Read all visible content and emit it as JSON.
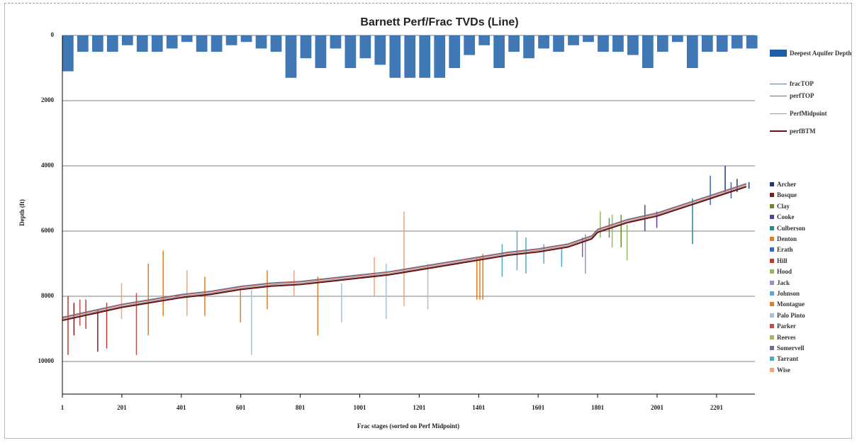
{
  "chart_data": {
    "type": "line",
    "title": "Barnett Perf/Frac TVDs (Line)",
    "xlabel": "Frac stages (sorted on Perf Midpoint)",
    "ylabel": "Depth (ft)",
    "xlim": [
      1,
      2330
    ],
    "ylim": [
      0,
      11000
    ],
    "y_reversed": true,
    "xticks": [
      1,
      201,
      401,
      601,
      801,
      1001,
      1201,
      1401,
      1601,
      1801,
      2001,
      2201
    ],
    "yticks": [
      0,
      2000,
      4000,
      6000,
      8000,
      10000
    ],
    "grid": true,
    "bars": {
      "name": "Deepest Aquifer Depth",
      "color": "#1f5fa8",
      "x": [
        1,
        51,
        101,
        151,
        201,
        251,
        301,
        351,
        401,
        451,
        501,
        551,
        601,
        651,
        701,
        751,
        801,
        851,
        901,
        951,
        1001,
        1051,
        1101,
        1151,
        1201,
        1251,
        1301,
        1351,
        1401,
        1451,
        1501,
        1551,
        1601,
        1651,
        1701,
        1751,
        1801,
        1851,
        1901,
        1951,
        2001,
        2051,
        2101,
        2151,
        2201,
        2251,
        2301
      ],
      "values": [
        1100,
        500,
        500,
        500,
        300,
        500,
        500,
        400,
        200,
        500,
        500,
        300,
        200,
        400,
        500,
        1300,
        700,
        1000,
        400,
        1000,
        700,
        900,
        1300,
        1300,
        1300,
        1300,
        1000,
        600,
        300,
        1000,
        500,
        700,
        400,
        500,
        300,
        200,
        500,
        500,
        600,
        1000,
        500,
        200,
        1000,
        500,
        500,
        400,
        400
      ]
    },
    "x": [
      1,
      101,
      201,
      301,
      401,
      501,
      601,
      701,
      801,
      901,
      1001,
      1101,
      1201,
      1301,
      1401,
      1501,
      1601,
      1701,
      1781,
      1801,
      1901,
      2001,
      2101,
      2201,
      2301
    ],
    "series": [
      {
        "name": "fracTOP",
        "color": "#5a7fa8",
        "values": [
          8640,
          8440,
          8240,
          8090,
          7940,
          7840,
          7690,
          7590,
          7540,
          7440,
          7340,
          7240,
          7090,
          6940,
          6790,
          6640,
          6540,
          6390,
          6140,
          5940,
          5640,
          5440,
          5140,
          4840,
          4540
        ]
      },
      {
        "name": "perfTOP",
        "color": "#c0504d",
        "values": [
          8660,
          8460,
          8260,
          8110,
          7960,
          7860,
          7710,
          7610,
          7560,
          7460,
          7360,
          7260,
          7110,
          6960,
          6810,
          6660,
          6560,
          6410,
          6160,
          5960,
          5660,
          5460,
          5160,
          4860,
          4560
        ]
      },
      {
        "name": "PerfMidpoint",
        "color": "#9a9a9a",
        "values": [
          8700,
          8500,
          8300,
          8150,
          8000,
          7900,
          7750,
          7650,
          7600,
          7500,
          7400,
          7300,
          7150,
          7000,
          6850,
          6700,
          6600,
          6450,
          6200,
          6000,
          5700,
          5500,
          5200,
          4900,
          4600
        ]
      },
      {
        "name": "perfBTM",
        "color": "#6b1010",
        "values": [
          8740,
          8540,
          8340,
          8190,
          8040,
          7940,
          7790,
          7690,
          7640,
          7540,
          7440,
          7340,
          7190,
          7040,
          6890,
          6740,
          6640,
          6490,
          6240,
          6040,
          5740,
          5540,
          5240,
          4940,
          4640
        ]
      }
    ],
    "counties": [
      {
        "name": "Archer",
        "color": "#1f3a7a",
        "x": [
          2230,
          2270,
          2310
        ],
        "top": [
          4000,
          4400,
          4500
        ],
        "bottom": [
          4800,
          4800,
          4700
        ]
      },
      {
        "name": "Bosque",
        "color": "#7a1f1f",
        "x": [
          40,
          120
        ],
        "top": [
          8200,
          8400
        ],
        "bottom": [
          9200,
          9700
        ]
      },
      {
        "name": "Clay",
        "color": "#6b8e23",
        "x": [
          1840,
          1880
        ],
        "top": [
          5600,
          5500
        ],
        "bottom": [
          6200,
          6500
        ]
      },
      {
        "name": "Cooke",
        "color": "#5b3f8c",
        "x": [
          1960,
          2000
        ],
        "top": [
          5200,
          5400
        ],
        "bottom": [
          6000,
          5900
        ]
      },
      {
        "name": "Culberson",
        "color": "#2a8a8a",
        "x": [
          2120
        ],
        "top": [
          5000
        ],
        "bottom": [
          6400
        ]
      },
      {
        "name": "Denton",
        "color": "#e07b20",
        "x": [
          290,
          480,
          690,
          1395,
          1405,
          1415
        ],
        "top": [
          7000,
          7400,
          7200,
          6800,
          6800,
          6700
        ],
        "bottom": [
          9200,
          8600,
          8400,
          8100,
          8100,
          8100
        ]
      },
      {
        "name": "Erath",
        "color": "#3366cc",
        "x": [
          2180,
          2250
        ],
        "top": [
          4300,
          4500
        ],
        "bottom": [
          5200,
          5000
        ]
      },
      {
        "name": "Hill",
        "color": "#c0392b",
        "x": [
          20,
          80,
          150
        ],
        "top": [
          8000,
          8100,
          8200
        ],
        "bottom": [
          9800,
          9000,
          9600
        ]
      },
      {
        "name": "Hood",
        "color": "#8fbc5a",
        "x": [
          1810,
          1900
        ],
        "top": [
          5400,
          5800
        ],
        "bottom": [
          6200,
          6900
        ]
      },
      {
        "name": "Jack",
        "color": "#9a8fc0",
        "x": [
          1760
        ],
        "top": [
          6100
        ],
        "bottom": [
          7300
        ]
      },
      {
        "name": "Johnson",
        "color": "#5fa8d3",
        "x": [
          1530,
          1620
        ],
        "top": [
          6000,
          6400
        ],
        "bottom": [
          7200,
          7000
        ]
      },
      {
        "name": "Montague",
        "color": "#d9822b",
        "x": [
          340,
          600,
          860
        ],
        "top": [
          6600,
          7800,
          7400
        ],
        "bottom": [
          8600,
          8800,
          9200
        ]
      },
      {
        "name": "Palo Pinto",
        "color": "#a7c0d8",
        "x": [
          637,
          940,
          1090,
          1230
        ],
        "top": [
          7800,
          7600,
          7000,
          7000
        ],
        "bottom": [
          9800,
          8800,
          8700,
          8400
        ]
      },
      {
        "name": "Parker",
        "color": "#c0504d",
        "x": [
          60,
          250
        ],
        "top": [
          8100,
          7900
        ],
        "bottom": [
          8900,
          9800
        ]
      },
      {
        "name": "Reeves",
        "color": "#9bbb59",
        "x": [
          1850
        ],
        "top": [
          5500
        ],
        "bottom": [
          6500
        ]
      },
      {
        "name": "Somervell",
        "color": "#8064a2",
        "x": [
          1750
        ],
        "top": [
          6200
        ],
        "bottom": [
          6800
        ]
      },
      {
        "name": "Tarrant",
        "color": "#4bacc6",
        "x": [
          1480,
          1560,
          1680
        ],
        "top": [
          6400,
          6200,
          6500
        ],
        "bottom": [
          7400,
          7300,
          7100
        ]
      },
      {
        "name": "Wise",
        "color": "#f2a37a",
        "x": [
          200,
          420,
          780,
          1050,
          1150
        ],
        "top": [
          7600,
          7200,
          7200,
          6800,
          5400
        ],
        "bottom": [
          8700,
          8600,
          8000,
          8000,
          8300
        ]
      }
    ]
  }
}
